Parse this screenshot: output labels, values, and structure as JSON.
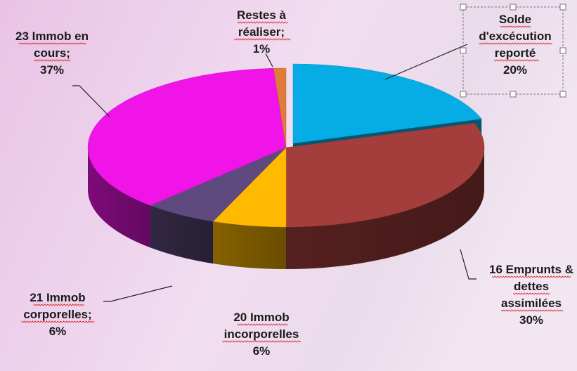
{
  "chart_data": {
    "type": "pie",
    "style": "3d-exploded-pie",
    "title": "",
    "legend": "none",
    "slices": [
      {
        "lines": [
          "Solde",
          "d'excécution",
          "reporté"
        ],
        "percent_label": "20%",
        "value": 20,
        "color": "#06ADE4"
      },
      {
        "lines": [
          "16 Emprunts &",
          "dettes",
          "assimilées"
        ],
        "percent_label": "30%",
        "value": 30,
        "color": "#A33E3C"
      },
      {
        "lines": [
          "20 Immob",
          "incorporelles"
        ],
        "percent_label": "6%",
        "value": 6,
        "color": "#FFB900"
      },
      {
        "lines": [
          "21 Immob",
          "corporelles;"
        ],
        "percent_label": "6%",
        "value": 6,
        "color": "#5F4A80"
      },
      {
        "lines": [
          "23 Immob en",
          "cours;"
        ],
        "percent_label": "37%",
        "value": 37,
        "color": "#F014E8"
      },
      {
        "lines": [
          "Restes à",
          "réaliser;"
        ],
        "percent_label": "1%",
        "value": 1,
        "color": "#E07B39"
      }
    ]
  }
}
